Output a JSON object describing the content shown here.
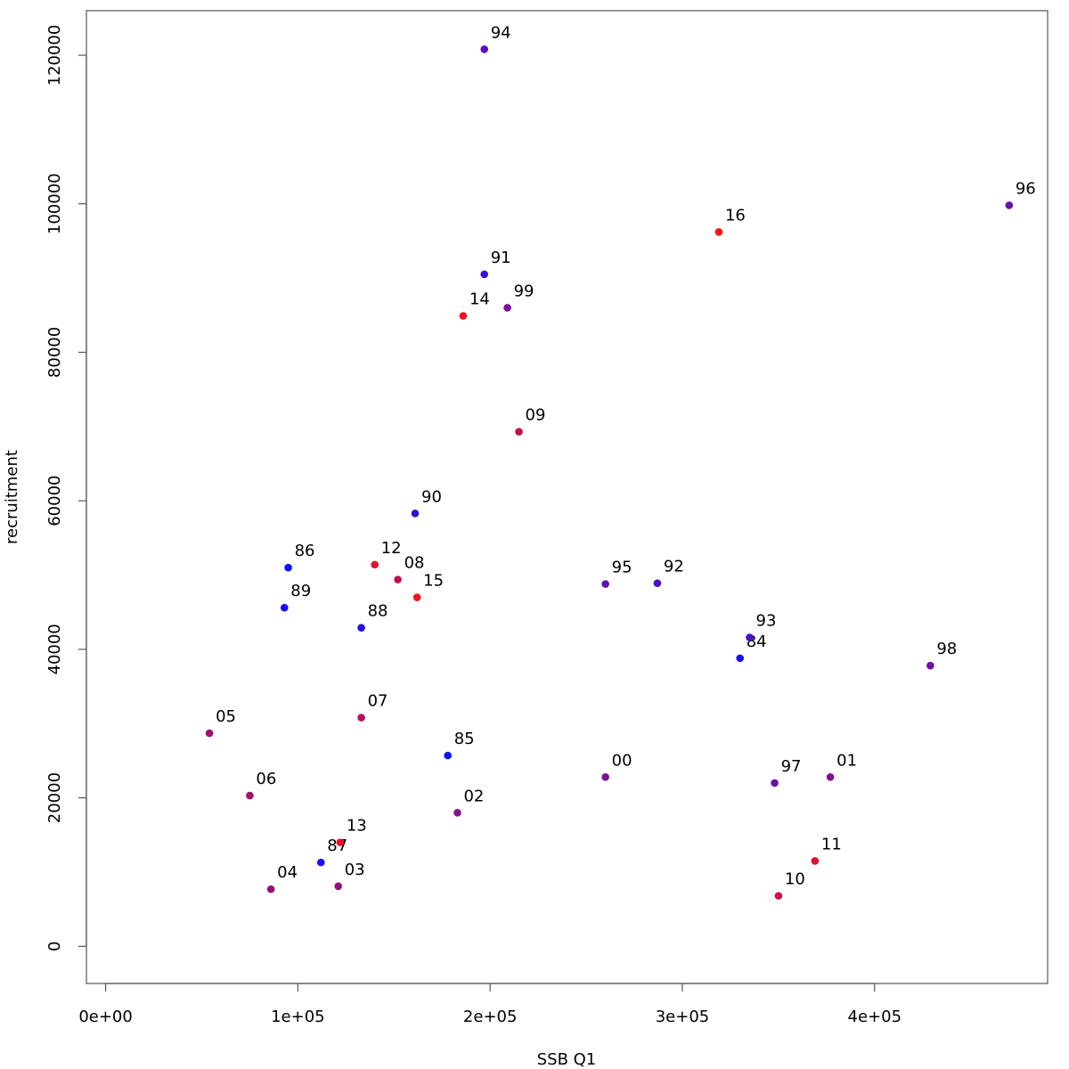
{
  "chart_data": {
    "type": "scatter",
    "title": "",
    "xlabel": "SSB Q1",
    "ylabel": "recruitment",
    "xlim": [
      -10000,
      490000
    ],
    "ylim": [
      -5000,
      126000
    ],
    "x_ticks": [
      0,
      100000,
      200000,
      300000,
      400000
    ],
    "x_tick_labels": [
      "0e+00",
      "1e+05",
      "2e+05",
      "3e+05",
      "4e+05"
    ],
    "y_ticks": [
      0,
      20000,
      40000,
      60000,
      80000,
      100000,
      120000
    ],
    "y_tick_labels": [
      "0",
      "20000",
      "40000",
      "60000",
      "80000",
      "100000",
      "120000"
    ],
    "grid": false,
    "points": [
      {
        "label": "84",
        "x": 330000,
        "y": 38800,
        "color": "#1a10ee"
      },
      {
        "label": "85",
        "x": 178000,
        "y": 25700,
        "color": "#0a14f5"
      },
      {
        "label": "86",
        "x": 95000,
        "y": 51000,
        "color": "#1010f0"
      },
      {
        "label": "87",
        "x": 112000,
        "y": 11300,
        "color": "#1a10ee"
      },
      {
        "label": "88",
        "x": 133000,
        "y": 42900,
        "color": "#2010e6"
      },
      {
        "label": "89",
        "x": 93000,
        "y": 45600,
        "color": "#1a10ee"
      },
      {
        "label": "90",
        "x": 161000,
        "y": 58300,
        "color": "#3010d8"
      },
      {
        "label": "91",
        "x": 197000,
        "y": 90500,
        "color": "#3a10d0"
      },
      {
        "label": "92",
        "x": 287000,
        "y": 48900,
        "color": "#4a10c6"
      },
      {
        "label": "93",
        "x": 335000,
        "y": 41600,
        "color": "#4a10c6"
      },
      {
        "label": "94",
        "x": 197000,
        "y": 120800,
        "color": "#5a10b8"
      },
      {
        "label": "95",
        "x": 260000,
        "y": 48800,
        "color": "#6010b0"
      },
      {
        "label": "96",
        "x": 470000,
        "y": 99800,
        "color": "#6a10a8"
      },
      {
        "label": "97",
        "x": 348000,
        "y": 22000,
        "color": "#6a10a8"
      },
      {
        "label": "98",
        "x": 429000,
        "y": 37800,
        "color": "#7010a4"
      },
      {
        "label": "99",
        "x": 209000,
        "y": 86000,
        "color": "#7a1096"
      },
      {
        "label": "00",
        "x": 260000,
        "y": 22800,
        "color": "#7a1096"
      },
      {
        "label": "01",
        "x": 377000,
        "y": 22800,
        "color": "#801090"
      },
      {
        "label": "02",
        "x": 183000,
        "y": 18000,
        "color": "#861088"
      },
      {
        "label": "03",
        "x": 121000,
        "y": 8100,
        "color": "#901080"
      },
      {
        "label": "04",
        "x": 86000,
        "y": 7700,
        "color": "#961078"
      },
      {
        "label": "05",
        "x": 54000,
        "y": 28700,
        "color": "#a01070"
      },
      {
        "label": "06",
        "x": 75000,
        "y": 20300,
        "color": "#aa1068"
      },
      {
        "label": "07",
        "x": 133000,
        "y": 30800,
        "color": "#b41060"
      },
      {
        "label": "08",
        "x": 152000,
        "y": 49400,
        "color": "#c01050"
      },
      {
        "label": "09",
        "x": 215000,
        "y": 69300,
        "color": "#c81048"
      },
      {
        "label": "10",
        "x": 350000,
        "y": 6800,
        "color": "#d41040"
      },
      {
        "label": "11",
        "x": 369000,
        "y": 11500,
        "color": "#dc1038"
      },
      {
        "label": "12",
        "x": 140000,
        "y": 51400,
        "color": "#e21030"
      },
      {
        "label": "13",
        "x": 122000,
        "y": 14000,
        "color": "#ea1028"
      },
      {
        "label": "14",
        "x": 186000,
        "y": 84900,
        "color": "#f0101e"
      },
      {
        "label": "15",
        "x": 162000,
        "y": 47000,
        "color": "#f81018"
      },
      {
        "label": "16",
        "x": 319000,
        "y": 96200,
        "color": "#ff1010"
      }
    ]
  }
}
